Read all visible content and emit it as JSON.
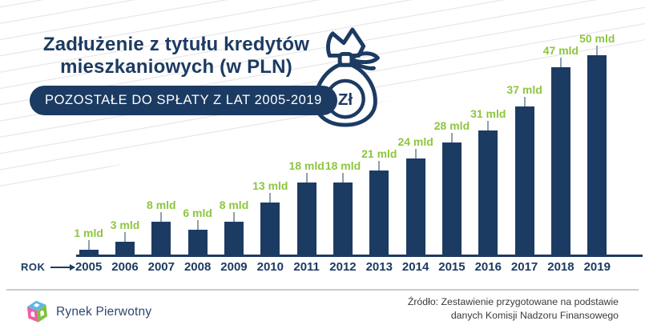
{
  "header": {
    "title_line1": "Zadłużenie z tytułu kredytów",
    "title_line2": "mieszkaniowych (w PLN)",
    "badge_label": "POZOSTAŁE DO SPŁATY Z LAT 2005-2019",
    "money_bag_icon": {
      "currency_label": "Zł"
    }
  },
  "chart_data": {
    "type": "bar",
    "title": "Zadłużenie z tytułu kredytów mieszkaniowych (w PLN)",
    "subtitle": "POZOSTAŁE DO SPŁATY Z LAT 2005-2019",
    "categories": [
      "2005",
      "2006",
      "2007",
      "2008",
      "2009",
      "2010",
      "2011",
      "2012",
      "2013",
      "2014",
      "2015",
      "2016",
      "2017",
      "2018",
      "2019"
    ],
    "values": [
      1,
      3,
      8,
      6,
      8,
      13,
      18,
      18,
      21,
      24,
      28,
      31,
      37,
      47,
      50
    ],
    "value_labels": [
      "1 mld",
      "3 mld",
      "8 mld",
      "6 mld",
      "8 mld",
      "13 mld",
      "18 mld",
      "18 mld",
      "21 mld",
      "24 mld",
      "28 mld",
      "31 mld",
      "37 mld",
      "47 mld",
      "50 mld"
    ],
    "unit": "mld",
    "xlabel": "ROK",
    "ylabel": "",
    "ylim": [
      0,
      50
    ],
    "grid": false,
    "legend": "none",
    "bar_color": "#1c3b62",
    "value_label_color": "#8dc63f",
    "tick_color": "#8fa0b0"
  },
  "x_axis": {
    "label": "ROK"
  },
  "footer": {
    "logo_text": "Rynek Pierwotny",
    "source_line1": "Źródło: Zestawienie przygotowane na podstawie",
    "source_line2": "danych Komisji Nadzoru Finansowego"
  },
  "colors": {
    "navy": "#1c3b62",
    "green": "#8dc63f",
    "stripe": "#e9e9e9",
    "divider": "#c5cbd2",
    "source_text": "#3a3a3a",
    "logo_blue": "#5cb8e6",
    "logo_pink": "#ee5f9f",
    "logo_green": "#7ec142"
  }
}
